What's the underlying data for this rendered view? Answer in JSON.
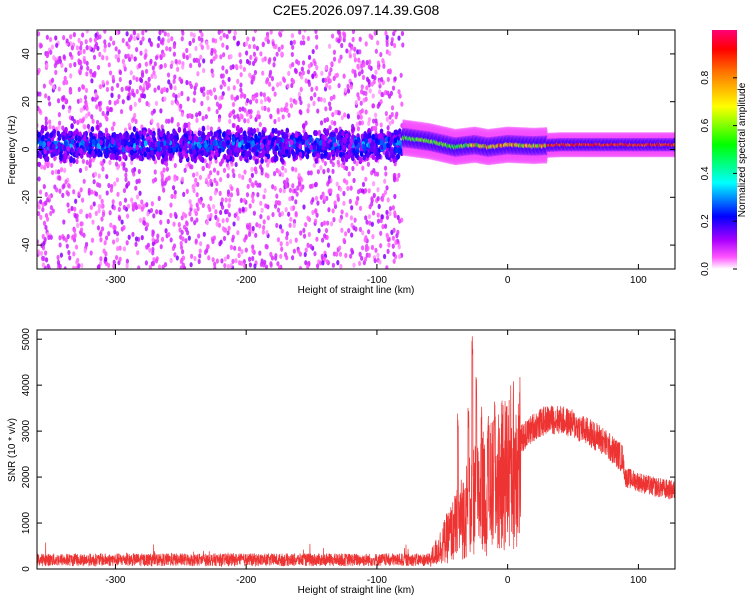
{
  "chart_data": [
    {
      "type": "heatmap",
      "title": "C2E5.2026.097.14.39.G08",
      "xlabel": "Height of straight line (km)",
      "ylabel": "Frequency (Hz)",
      "xlim": [
        -360,
        128
      ],
      "ylim": [
        -50,
        50
      ],
      "xticks": [
        -300,
        -200,
        -100,
        0,
        100
      ],
      "yticks": [
        -40,
        -20,
        0,
        20,
        40
      ],
      "colorbar": {
        "label": "Normalized spectral amplitude",
        "range": [
          0,
          1
        ],
        "ticks": [
          0.0,
          0.2,
          0.4,
          0.6,
          0.8
        ],
        "tick_labels": [
          "0.0",
          "0.2",
          "0.4",
          "0.6",
          "0.8"
        ],
        "colors": [
          "#ffffff",
          "#ff00ff",
          "#6600ff",
          "#0000ff",
          "#00ffff",
          "#00ff00",
          "#ffff00",
          "#ff8800",
          "#ff0000",
          "#ff0077"
        ]
      },
      "regions": [
        {
          "x_range": [
            -360,
            -80
          ],
          "center_freq": 2,
          "core_halfwidth": 8,
          "noise_halfwidth": 50,
          "peak_amplitude": 0.35
        },
        {
          "x_range": [
            -80,
            128
          ],
          "track": [
            [
              -80,
              5
            ],
            [
              -60,
              3.5
            ],
            [
              -40,
              1
            ],
            [
              -25,
              2
            ],
            [
              -15,
              1
            ],
            [
              0,
              2
            ],
            [
              20,
              1.5
            ],
            [
              40,
              2
            ],
            [
              60,
              2
            ],
            [
              128,
              2
            ]
          ],
          "peak_amplitude": 0.9
        }
      ]
    },
    {
      "type": "line",
      "xlabel": "Height of straight line (km)",
      "ylabel": "SNR (10 * v/v)",
      "xlim": [
        -360,
        128
      ],
      "ylim": [
        0,
        5200
      ],
      "xticks": [
        -300,
        -200,
        -100,
        0,
        100
      ],
      "yticks": [
        0,
        1000,
        2000,
        3000,
        4000,
        5000
      ],
      "series": [
        {
          "color": "#ee3333",
          "envelope": [
            [
              -360,
              200
            ],
            [
              -200,
              200
            ],
            [
              -60,
              200
            ],
            [
              -50,
              600
            ],
            [
              -40,
              1000
            ],
            [
              -30,
              1500
            ],
            [
              -20,
              1800
            ],
            [
              -10,
              2000
            ],
            [
              0,
              2400
            ],
            [
              10,
              2800
            ],
            [
              20,
              3100
            ],
            [
              30,
              3250
            ],
            [
              40,
              3250
            ],
            [
              50,
              3150
            ],
            [
              60,
              3000
            ],
            [
              70,
              2850
            ],
            [
              80,
              2600
            ],
            [
              88,
              2400
            ],
            [
              90,
              2000
            ],
            [
              100,
              1900
            ],
            [
              110,
              1800
            ],
            [
              128,
              1700
            ]
          ],
          "spikes": [
            [
              -38,
              3400
            ],
            [
              -30,
              3600
            ],
            [
              -27,
              5200
            ],
            [
              -24,
              4200
            ],
            [
              -20,
              3600
            ],
            [
              -15,
              3500
            ],
            [
              -10,
              3700
            ]
          ]
        }
      ]
    }
  ]
}
